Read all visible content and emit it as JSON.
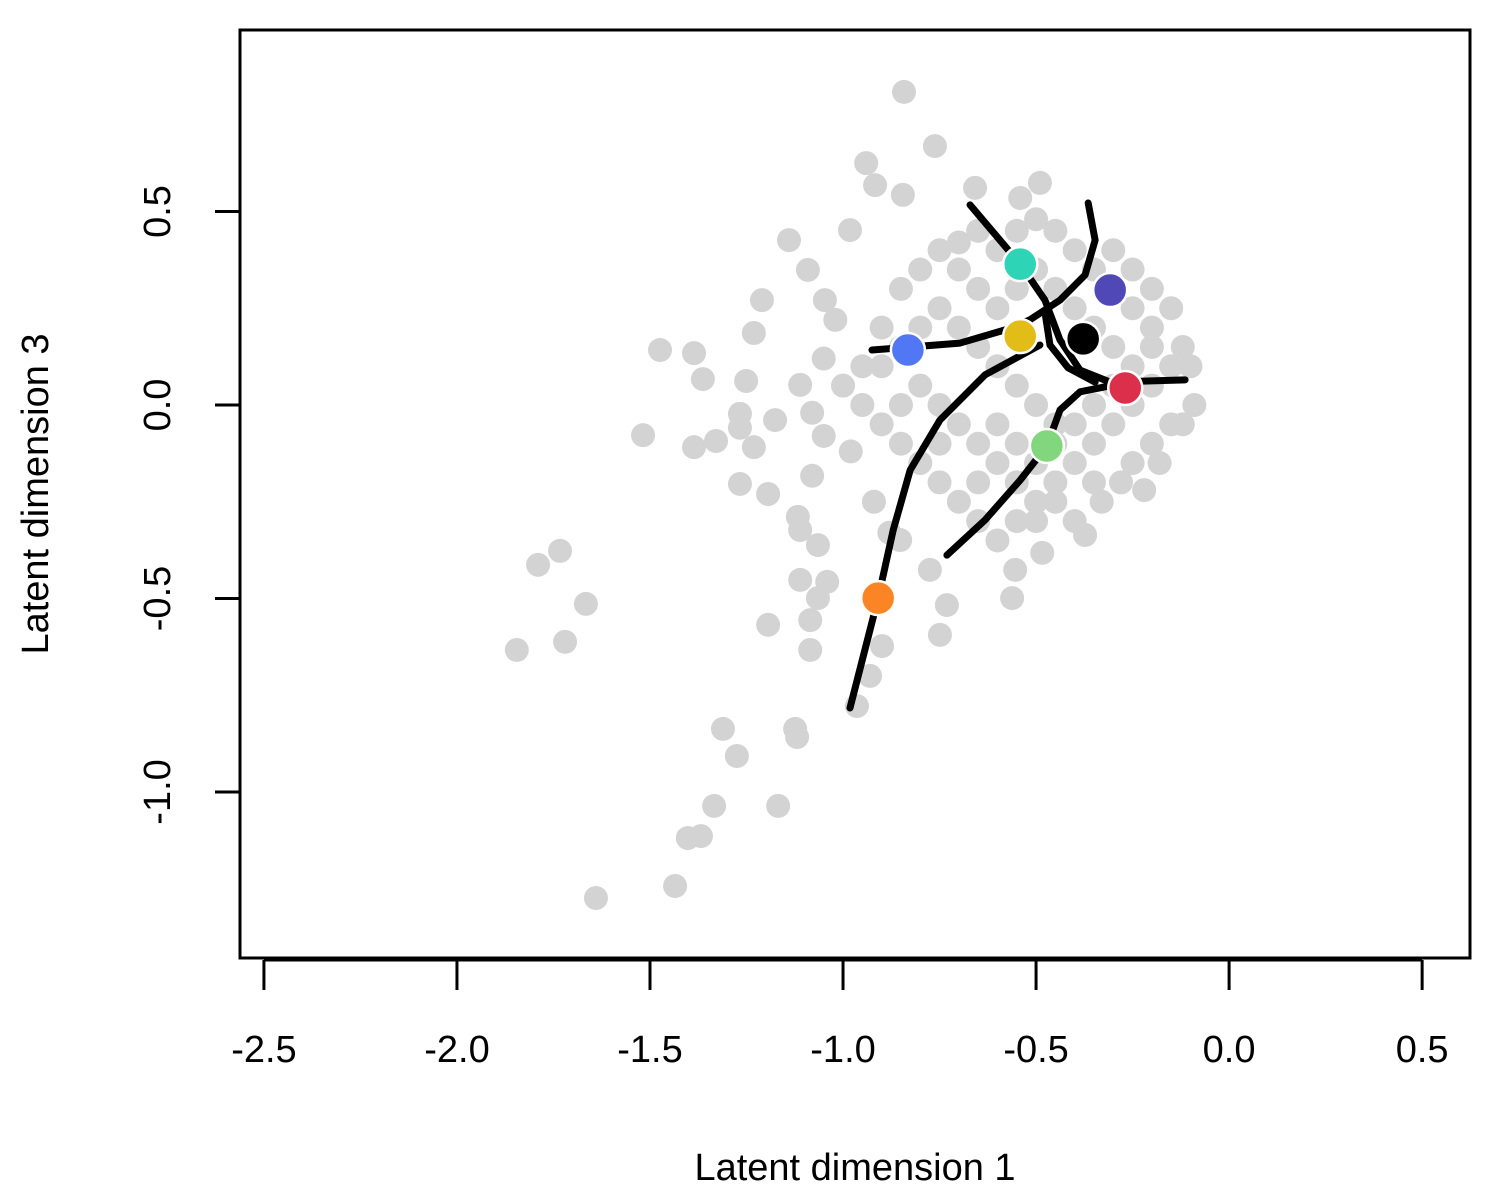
{
  "chart_data": {
    "type": "scatter",
    "xlabel": "Latent dimension 1",
    "ylabel": "Latent dimension 3",
    "xlim": [
      -2.562,
      0.624
    ],
    "ylim": [
      -1.429,
      0.969
    ],
    "xticks": [
      -2.5,
      {
        "value": -2,
        "label": "-2.0"
      },
      -1.5,
      {
        "value": -1,
        "label": "-1.0"
      },
      -0.5,
      {
        "value": 0,
        "label": "0.0"
      },
      0.5
    ],
    "yticks": [
      {
        "value": -1,
        "label": "-1.0"
      },
      -0.5,
      {
        "value": 0,
        "label": "0.0"
      },
      0.5
    ],
    "series": [
      {
        "color": "#d3d3d3",
        "x": [
          -0.842,
          -0.762,
          -0.94,
          -1.14,
          -1.474,
          -1.386,
          -1.363,
          -1.21,
          -1.231,
          -1.251,
          -1.518,
          -1.386,
          -1.329,
          -1.267,
          -1.267,
          -1.231,
          -1.267,
          -1.194,
          -1.79,
          -1.733,
          -1.666,
          -1.72,
          -1.845,
          -1.194,
          -1.085,
          -1.085,
          -1.311,
          -1.275,
          -1.124,
          -1.119,
          -1.168,
          -1.334,
          -1.402,
          -1.368,
          -1.435,
          -1.64,
          -0.964,
          -0.93,
          -0.899,
          -1.111,
          -1.041,
          -1.065,
          -1.117,
          -1.08,
          -1.111,
          -1.065,
          -1.176,
          -1.111,
          -1.091,
          -1.047,
          -0.982,
          -0.917,
          -0.845,
          -0.658,
          -0.49,
          -0.541,
          -0.731,
          -0.749,
          -0.562,
          -0.554,
          -0.484,
          -0.373,
          -0.775,
          -0.852,
          -0.3,
          -0.25,
          -0.2,
          -0.15,
          -0.12,
          -0.1,
          -0.09,
          -0.12,
          -0.18,
          -0.22,
          -0.28,
          -0.33,
          -0.4,
          -0.45,
          -0.5,
          -0.55,
          -0.6,
          -0.65,
          -0.7,
          -0.75,
          -0.8,
          -0.85,
          -0.9,
          -0.95,
          -1.0,
          -0.95,
          -0.9,
          -0.85,
          -0.8,
          -0.75,
          -0.7,
          -0.65,
          -0.6,
          -0.55,
          -0.5,
          -0.45,
          -0.4,
          -0.35,
          -0.3,
          -0.25,
          -0.2,
          -0.15,
          -0.2,
          -0.25,
          -0.3,
          -0.35,
          -0.4,
          -0.45,
          -0.5,
          -0.55,
          -0.6,
          -0.65,
          -0.7,
          -0.75,
          -0.8,
          -0.85,
          -0.8,
          -0.75,
          -0.7,
          -0.65,
          -0.6,
          -0.55,
          -0.5,
          -0.45,
          -0.4,
          -0.35,
          -0.3,
          -0.25,
          -0.2,
          -0.3,
          -0.35,
          -0.4,
          -0.45,
          -0.5,
          -0.55,
          -0.6,
          -0.65,
          -0.7,
          -0.6,
          -0.55,
          -0.65,
          -0.75,
          -0.85,
          -0.9,
          -0.2,
          -0.15,
          -0.25,
          -0.35,
          -0.45,
          -0.5,
          -1.02,
          -1.05,
          -1.08,
          -1.05,
          -0.98,
          -0.92,
          -0.88
        ],
        "y": [
          0.809,
          0.669,
          0.625,
          0.426,
          0.142,
          0.134,
          0.067,
          0.271,
          0.186,
          0.062,
          -0.078,
          -0.109,
          -0.093,
          -0.023,
          -0.059,
          -0.109,
          -0.204,
          -0.23,
          -0.413,
          -0.377,
          -0.514,
          -0.612,
          -0.633,
          -0.568,
          -0.633,
          -0.556,
          -0.837,
          -0.907,
          -0.837,
          -0.858,
          -1.036,
          -1.036,
          -1.119,
          -1.114,
          -1.243,
          -1.274,
          -0.778,
          -0.7,
          -0.623,
          -0.452,
          -0.457,
          -0.499,
          -0.289,
          -0.183,
          -0.323,
          -0.362,
          -0.039,
          0.052,
          0.349,
          0.271,
          0.452,
          0.568,
          0.543,
          0.561,
          0.574,
          0.535,
          -0.517,
          -0.594,
          -0.499,
          -0.426,
          -0.382,
          -0.336,
          -0.426,
          -0.349,
          0.4,
          0.35,
          0.3,
          0.25,
          0.15,
          0.1,
          0.0,
          -0.05,
          -0.15,
          -0.22,
          -0.2,
          -0.25,
          -0.3,
          -0.2,
          -0.25,
          -0.3,
          -0.35,
          -0.3,
          -0.25,
          -0.2,
          -0.15,
          -0.1,
          -0.05,
          0.0,
          0.05,
          0.1,
          0.2,
          0.3,
          0.35,
          0.4,
          0.42,
          0.45,
          0.4,
          0.45,
          0.48,
          0.45,
          0.4,
          0.35,
          0.3,
          0.25,
          0.2,
          0.1,
          0.05,
          0.0,
          -0.05,
          -0.1,
          -0.15,
          -0.05,
          0.0,
          0.05,
          0.1,
          0.15,
          0.2,
          0.25,
          0.2,
          0.15,
          0.05,
          0.0,
          -0.05,
          -0.1,
          -0.15,
          -0.1,
          -0.15,
          -0.1,
          -0.05,
          0.0,
          0.05,
          0.1,
          0.15,
          0.15,
          0.2,
          0.25,
          0.3,
          0.35,
          0.3,
          0.25,
          0.3,
          0.35,
          -0.05,
          -0.2,
          -0.2,
          -0.1,
          0.0,
          0.1,
          -0.1,
          -0.05,
          -0.15,
          -0.2,
          -0.25,
          -0.3,
          0.22,
          0.12,
          -0.02,
          -0.08,
          -0.12,
          -0.25,
          -0.33
        ]
      },
      {
        "color": "#2dd4b5",
        "x": [
          -0.541
        ],
        "y": [
          0.364
        ]
      },
      {
        "color": "#5148b8",
        "x": [
          -0.308
        ],
        "y": [
          0.297
        ]
      },
      {
        "color": "#e2bd17",
        "x": [
          -0.541
        ],
        "y": [
          0.178
        ]
      },
      {
        "color": "#000000",
        "x": [
          -0.378
        ],
        "y": [
          0.171
        ]
      },
      {
        "color": "#5277f5",
        "x": [
          -0.832
        ],
        "y": [
          0.142
        ]
      },
      {
        "color": "#dc2f4b",
        "x": [
          -0.269
        ],
        "y": [
          0.044
        ]
      },
      {
        "color": "#82d67e",
        "x": [
          -0.472
        ],
        "y": [
          -0.106
        ]
      },
      {
        "color": "#fb8424",
        "x": [
          -0.909
        ],
        "y": [
          -0.499
        ]
      }
    ],
    "lines": [
      {
        "color": "#000000",
        "x": [
          -0.671,
          -0.541,
          -0.477,
          -0.438,
          -0.386,
          -0.308,
          -0.114
        ],
        "y": [
          0.517,
          0.364,
          0.271,
          0.168,
          0.09,
          0.059,
          0.065
        ]
      },
      {
        "color": "#000000",
        "x": [
          -0.365,
          -0.347,
          -0.373,
          -0.438,
          -0.516,
          -0.58,
          -0.697,
          -0.925
        ],
        "y": [
          0.522,
          0.426,
          0.336,
          0.271,
          0.22,
          0.194,
          0.16,
          0.142
        ]
      },
      {
        "color": "#000000",
        "x": [
          -0.49,
          -0.632,
          -0.749,
          -0.826,
          -0.87,
          -0.909,
          -0.982
        ],
        "y": [
          0.155,
          0.078,
          -0.039,
          -0.168,
          -0.323,
          -0.499,
          -0.783
        ]
      },
      {
        "color": "#000000",
        "x": [
          -0.477,
          -0.464,
          -0.417,
          -0.347
        ],
        "y": [
          0.24,
          0.155,
          0.096,
          0.059
        ]
      },
      {
        "color": "#000000",
        "x": [
          -0.295,
          -0.386,
          -0.438,
          -0.472,
          -0.541,
          -0.632,
          -0.731
        ],
        "y": [
          0.052,
          0.034,
          -0.013,
          -0.106,
          -0.194,
          -0.297,
          -0.388
        ]
      }
    ]
  }
}
